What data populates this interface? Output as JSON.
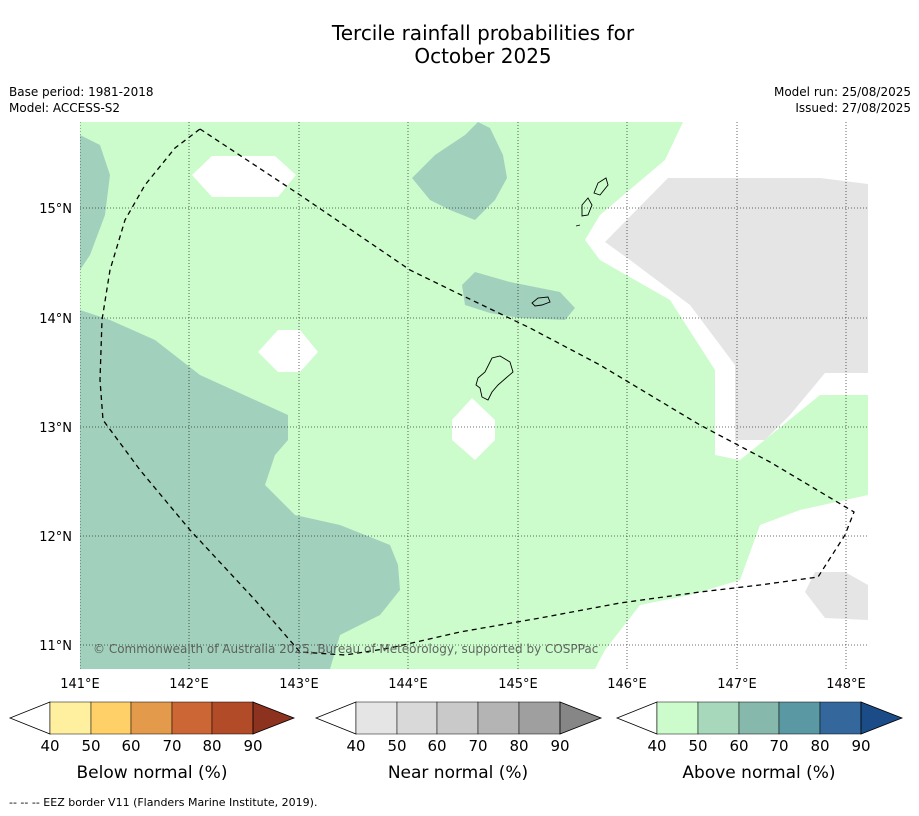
{
  "title_line1": "Tercile rainfall probabilities for",
  "title_line2": "October 2025",
  "meta_left": {
    "base_period": "Base period: 1981-2018",
    "model": "Model: ACCESS-S2"
  },
  "meta_right": {
    "model_run": "Model run: 25/08/2025",
    "issued": "Issued: 27/08/2025"
  },
  "map": {
    "lat_labels": [
      "15°N",
      "14°N",
      "13°N",
      "12°N",
      "11°N"
    ],
    "lon_labels": [
      "141°E",
      "142°E",
      "143°E",
      "144°E",
      "145°E",
      "146°E",
      "147°E",
      "148°E"
    ],
    "copyright": "© Commonwealth of Australia 2025, Bureau of Meteorology, supported by COSPPac",
    "fill_colors": {
      "above_40_50": "#ccfccc",
      "above_50_60": "#a1d1bc",
      "near_40_50": "#e5e5e5"
    }
  },
  "colorbars": [
    {
      "title": "Below normal (%)",
      "ticks": [
        "40",
        "50",
        "60",
        "70",
        "80",
        "90"
      ],
      "colors": [
        "#fff0a0",
        "#ffd068",
        "#e39a4a",
        "#cc6634",
        "#b24c28",
        "#8c321e"
      ]
    },
    {
      "title": "Near normal (%)",
      "ticks": [
        "40",
        "50",
        "60",
        "70",
        "80",
        "90"
      ],
      "colors": [
        "#e5e5e5",
        "#d9d9d9",
        "#c9c9c9",
        "#b4b4b4",
        "#9f9f9f",
        "#868686"
      ]
    },
    {
      "title": "Above normal (%)",
      "ticks": [
        "40",
        "50",
        "60",
        "70",
        "80",
        "90"
      ],
      "colors": [
        "#ccfccc",
        "#a8d8bc",
        "#86b8ac",
        "#5a98a4",
        "#34689c",
        "#1c4c88"
      ]
    }
  ],
  "footer": "--  --  -- EEZ border V11 (Flanders Marine Institute, 2019)."
}
